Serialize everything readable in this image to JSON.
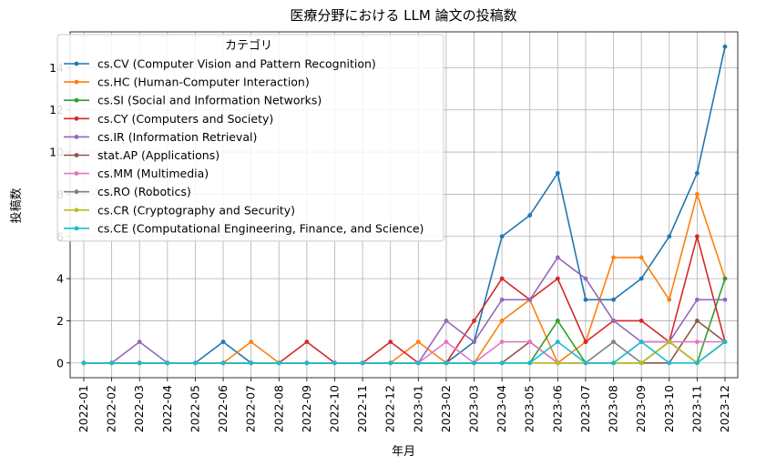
{
  "chart_data": {
    "type": "line",
    "title": "医療分野における LLM 論文の投稿数",
    "xlabel": "年月",
    "ylabel": "投稿数",
    "ylim": [
      -0.7,
      15.7
    ],
    "yticks": [
      0,
      2,
      4,
      6,
      8,
      10,
      12,
      14
    ],
    "grid": true,
    "legend_title": "カテゴリ",
    "legend_position": "upper-left",
    "categories": [
      "2022-01",
      "2022-02",
      "2022-03",
      "2022-04",
      "2022-05",
      "2022-06",
      "2022-07",
      "2022-08",
      "2022-09",
      "2022-10",
      "2022-11",
      "2022-12",
      "2023-01",
      "2023-02",
      "2023-03",
      "2023-04",
      "2023-05",
      "2023-06",
      "2023-07",
      "2023-08",
      "2023-09",
      "2023-10",
      "2023-11",
      "2023-12"
    ],
    "series": [
      {
        "name": "cs.CV (Computer Vision and Pattern Recognition)",
        "color": "#1f77b4",
        "values": [
          0,
          0,
          0,
          0,
          0,
          1,
          0,
          0,
          0,
          0,
          0,
          0,
          0,
          0,
          1,
          6,
          7,
          9,
          3,
          3,
          4,
          6,
          9,
          15
        ]
      },
      {
        "name": "cs.HC (Human-Computer Interaction)",
        "color": "#ff7f0e",
        "values": [
          0,
          0,
          0,
          0,
          0,
          0,
          1,
          0,
          0,
          0,
          0,
          0,
          1,
          0,
          0,
          2,
          3,
          0,
          1,
          5,
          5,
          3,
          8,
          4
        ]
      },
      {
        "name": "cs.SI (Social and Information Networks)",
        "color": "#2ca02c",
        "values": [
          0,
          0,
          0,
          0,
          0,
          0,
          0,
          0,
          0,
          0,
          0,
          0,
          0,
          0,
          0,
          0,
          0,
          2,
          0,
          0,
          0,
          1,
          0,
          4
        ]
      },
      {
        "name": "cs.CY (Computers and Society)",
        "color": "#d62728",
        "values": [
          0,
          0,
          0,
          0,
          0,
          0,
          0,
          0,
          1,
          0,
          0,
          1,
          0,
          0,
          2,
          4,
          3,
          4,
          1,
          2,
          2,
          1,
          6,
          1
        ]
      },
      {
        "name": "cs.IR (Information Retrieval)",
        "color": "#9467bd",
        "values": [
          0,
          0,
          1,
          0,
          0,
          0,
          0,
          0,
          0,
          0,
          0,
          0,
          0,
          2,
          1,
          3,
          3,
          5,
          4,
          2,
          1,
          1,
          3,
          3
        ]
      },
      {
        "name": "stat.AP (Applications)",
        "color": "#8c564b",
        "values": [
          0,
          0,
          0,
          0,
          0,
          0,
          0,
          0,
          0,
          0,
          0,
          0,
          0,
          0,
          0,
          0,
          1,
          0,
          0,
          0,
          0,
          0,
          2,
          1
        ]
      },
      {
        "name": "cs.MM (Multimedia)",
        "color": "#e377c2",
        "values": [
          0,
          0,
          0,
          0,
          0,
          0,
          0,
          0,
          0,
          0,
          0,
          0,
          0,
          1,
          0,
          1,
          1,
          0,
          0,
          0,
          1,
          1,
          1,
          1
        ]
      },
      {
        "name": "cs.RO (Robotics)",
        "color": "#7f7f7f",
        "values": [
          0,
          0,
          0,
          0,
          0,
          0,
          0,
          0,
          0,
          0,
          0,
          0,
          0,
          0,
          0,
          0,
          0,
          0,
          0,
          1,
          0,
          1,
          0,
          1
        ]
      },
      {
        "name": "cs.CR (Cryptography and Security)",
        "color": "#bcbd22",
        "values": [
          0,
          0,
          0,
          0,
          0,
          0,
          0,
          0,
          0,
          0,
          0,
          0,
          0,
          0,
          0,
          0,
          0,
          0,
          0,
          0,
          0,
          1,
          0,
          1
        ]
      },
      {
        "name": "cs.CE (Computational Engineering, Finance, and Science)",
        "color": "#17becf",
        "values": [
          0,
          0,
          0,
          0,
          0,
          0,
          0,
          0,
          0,
          0,
          0,
          0,
          0,
          0,
          0,
          0,
          0,
          1,
          0,
          0,
          1,
          0,
          0,
          1
        ]
      }
    ]
  }
}
